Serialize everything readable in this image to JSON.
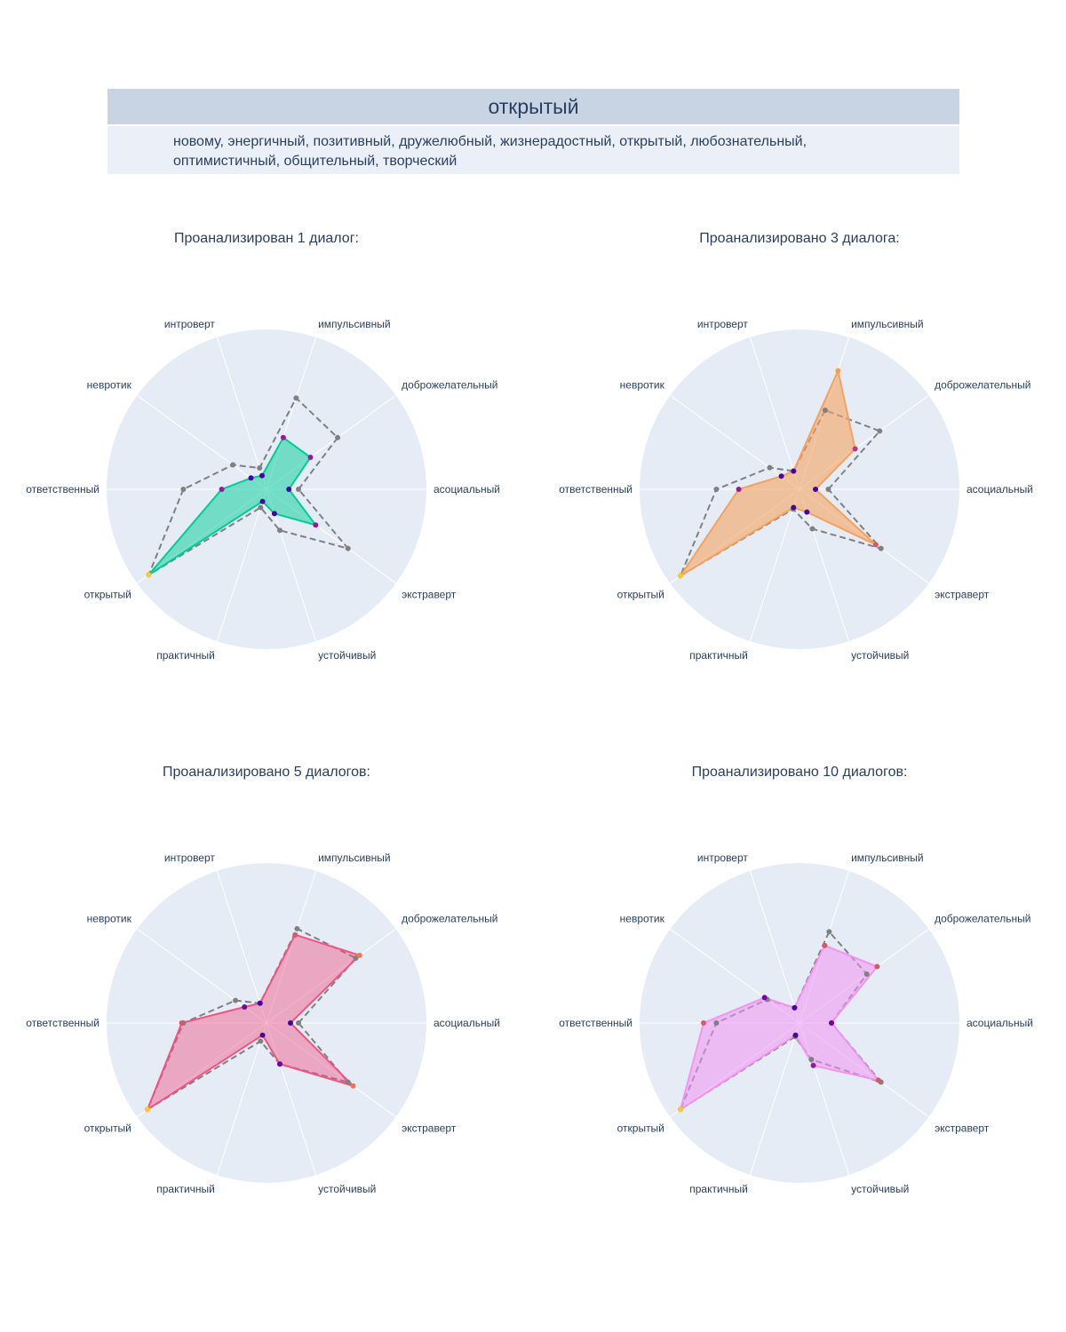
{
  "header": {
    "title": "открытый",
    "text": "новому, энергичный, позитивный, дружелюбный, жизнерадостный, открытый, любознательный, оптимистичный, общительный, творческий"
  },
  "chart_data": {
    "type": "radar",
    "axes": [
      "асоциальный",
      "доброжелательный",
      "импульсивный",
      "интроверт",
      "невротик",
      "ответственный",
      "открытый",
      "практичный",
      "устойчивый",
      "экстраверт"
    ],
    "range": [
      0,
      1
    ],
    "reference_color": "#808080",
    "point_colors": [
      "#0d0887",
      "#46039f",
      "#7201a8",
      "#9c179e",
      "#bd3786",
      "#d8576b",
      "#ed7953",
      "#fb9f3a",
      "#fdca26",
      "#f0f921"
    ],
    "charts": [
      {
        "subtitle": "Проанализирован 1 диалог:",
        "fill": "rgba(0,204,150,0.5)",
        "line": "#00cc96",
        "values": [
          0.14,
          0.34,
          0.34,
          0.09,
          0.12,
          0.28,
          0.91,
          0.08,
          0.16,
          0.38
        ],
        "reference": [
          0.2,
          0.55,
          0.6,
          0.14,
          0.26,
          0.52,
          0.91,
          0.12,
          0.27,
          0.63
        ]
      },
      {
        "subtitle": "Проанализировано 3 диалога:",
        "fill": "rgba(244,163,97,0.6)",
        "line": "#f4a261",
        "values": [
          0.1,
          0.43,
          0.78,
          0.12,
          0.14,
          0.38,
          0.92,
          0.12,
          0.15,
          0.59
        ],
        "reference": [
          0.18,
          0.62,
          0.52,
          0.12,
          0.23,
          0.52,
          0.92,
          0.13,
          0.26,
          0.63
        ]
      },
      {
        "subtitle": "Проанализировано 5 диалогов:",
        "fill": "rgba(239,85,130,0.45)",
        "line": "#ef5582",
        "values": [
          0.15,
          0.72,
          0.58,
          0.13,
          0.17,
          0.53,
          0.92,
          0.08,
          0.27,
          0.67
        ],
        "reference": [
          0.2,
          0.69,
          0.62,
          0.13,
          0.24,
          0.52,
          0.92,
          0.12,
          0.27,
          0.63
        ]
      },
      {
        "subtitle": "Проанализировано 10 диалогов:",
        "fill": "rgba(242,148,242,0.55)",
        "line": "#f294f2",
        "values": [
          0.2,
          0.6,
          0.51,
          0.1,
          0.27,
          0.6,
          0.92,
          0.08,
          0.28,
          0.61
        ],
        "reference": [
          0.2,
          0.52,
          0.6,
          0.1,
          0.25,
          0.52,
          0.92,
          0.09,
          0.24,
          0.63
        ]
      }
    ]
  }
}
